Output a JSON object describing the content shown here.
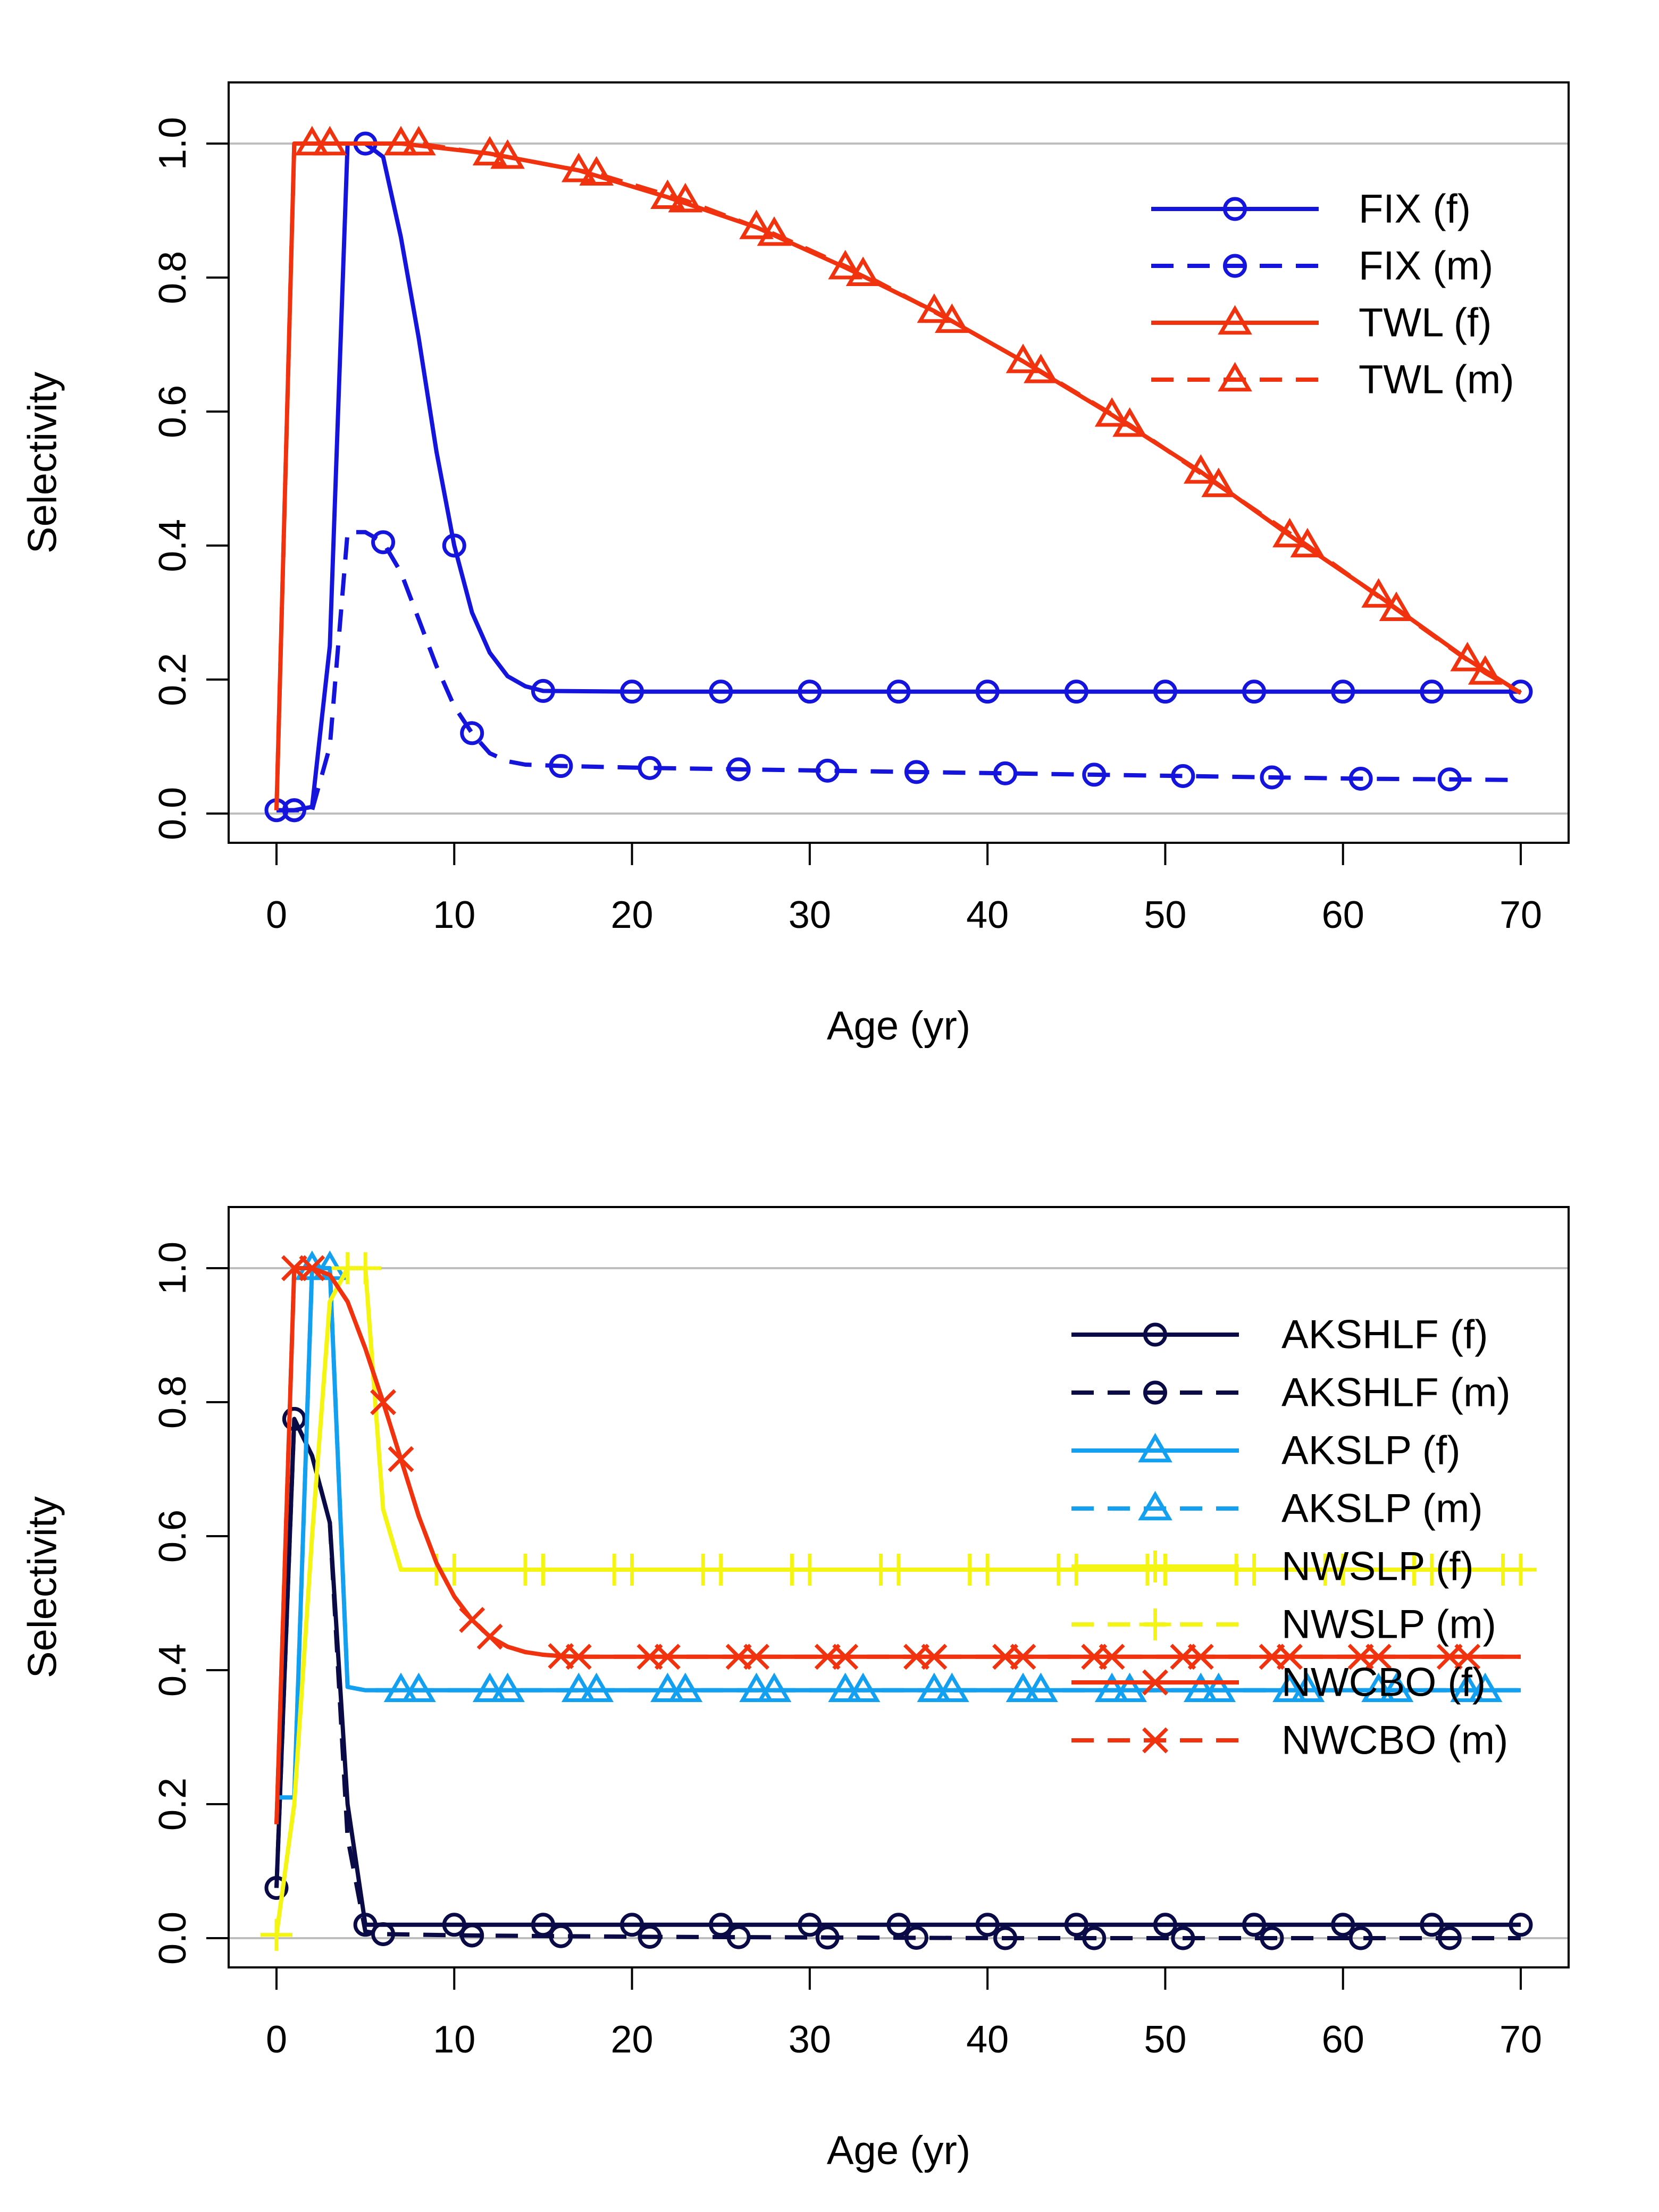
{
  "chart_data": [
    {
      "type": "line",
      "xlabel": "Age (yr)",
      "ylabel": "Selectivity",
      "xlim": [
        0,
        70
      ],
      "ylim": [
        0,
        1
      ],
      "xticks": [
        0,
        10,
        20,
        30,
        40,
        50,
        60,
        70
      ],
      "yticks": [
        "0.0",
        "0.2",
        "0.4",
        "0.6",
        "0.8",
        "1.0"
      ],
      "reference_lines": [
        0,
        1
      ],
      "legend_position": "top-right",
      "series": [
        {
          "name": "FIX (f)",
          "color": "#1414dc",
          "dash": "solid",
          "marker": "circle",
          "x": [
            0,
            1,
            2,
            3,
            4,
            5,
            6,
            7,
            8,
            9,
            10,
            11,
            12,
            13,
            14,
            15,
            20,
            25,
            30,
            35,
            40,
            45,
            50,
            55,
            60,
            65,
            70
          ],
          "y": [
            0.005,
            0.005,
            0.01,
            0.25,
            1.0,
            1.0,
            0.98,
            0.86,
            0.71,
            0.54,
            0.4,
            0.3,
            0.24,
            0.205,
            0.19,
            0.183,
            0.182,
            0.182,
            0.182,
            0.182,
            0.182,
            0.182,
            0.182,
            0.182,
            0.182,
            0.182,
            0.182
          ],
          "markers_x": [
            0,
            1,
            5,
            10,
            15,
            20,
            25,
            30,
            35,
            40,
            45,
            50,
            55,
            60,
            65,
            70
          ]
        },
        {
          "name": "FIX (m)",
          "color": "#1414dc",
          "dash": "dashed",
          "marker": "circle",
          "x": [
            0,
            1,
            2,
            3,
            4,
            5,
            6,
            7,
            8,
            9,
            10,
            11,
            12,
            13,
            14,
            16,
            21,
            26,
            31,
            36,
            41,
            46,
            51,
            56,
            61,
            66,
            70
          ],
          "y": [
            0.005,
            0.005,
            0.005,
            0.1,
            0.42,
            0.42,
            0.405,
            0.36,
            0.29,
            0.22,
            0.16,
            0.12,
            0.09,
            0.078,
            0.073,
            0.071,
            0.068,
            0.066,
            0.064,
            0.062,
            0.06,
            0.058,
            0.056,
            0.054,
            0.052,
            0.051,
            0.05
          ],
          "markers_x": [
            1,
            6,
            11,
            16,
            21,
            26,
            31,
            36,
            41,
            46,
            51,
            56,
            61,
            66
          ]
        },
        {
          "name": "TWL (f)",
          "color": "#f0320f",
          "dash": "solid",
          "marker": "triangle",
          "x": [
            0,
            1,
            2,
            7,
            12,
            17,
            22,
            27,
            32,
            37,
            42,
            47,
            52,
            57,
            62,
            67,
            70
          ],
          "y": [
            0.005,
            1.0,
            1.0,
            1.0,
            0.985,
            0.96,
            0.92,
            0.875,
            0.815,
            0.75,
            0.675,
            0.595,
            0.51,
            0.415,
            0.325,
            0.23,
            0.18
          ],
          "markers_x": [
            2,
            7,
            12,
            17,
            22,
            27,
            32,
            37,
            42,
            47,
            52,
            57,
            62,
            67
          ]
        },
        {
          "name": "TWL (m)",
          "color": "#f0320f",
          "dash": "dashed",
          "marker": "triangle",
          "x": [
            0,
            1,
            3,
            8,
            13,
            18,
            23,
            28,
            33,
            38,
            43,
            48,
            53,
            58,
            63,
            68,
            70
          ],
          "y": [
            0.005,
            1.0,
            1.0,
            1.0,
            0.98,
            0.955,
            0.915,
            0.865,
            0.805,
            0.735,
            0.66,
            0.58,
            0.49,
            0.4,
            0.305,
            0.21,
            0.18
          ],
          "markers_x": [
            3,
            8,
            13,
            18,
            23,
            28,
            33,
            38,
            43,
            48,
            53,
            58,
            63,
            68
          ]
        }
      ]
    },
    {
      "type": "line",
      "xlabel": "Age (yr)",
      "ylabel": "Selectivity",
      "xlim": [
        0,
        70
      ],
      "ylim": [
        0,
        1
      ],
      "xticks": [
        0,
        10,
        20,
        30,
        40,
        50,
        60,
        70
      ],
      "yticks": [
        "0.0",
        "0.2",
        "0.4",
        "0.6",
        "0.8",
        "1.0"
      ],
      "reference_lines": [
        0,
        1
      ],
      "legend_position": "top-right",
      "series": [
        {
          "name": "AKSHLF (f)",
          "color": "#0a0a46",
          "dash": "solid",
          "marker": "circle",
          "x": [
            0,
            1,
            2,
            3,
            4,
            5,
            10,
            20,
            30,
            40,
            50,
            60,
            70
          ],
          "y": [
            0.075,
            0.775,
            0.72,
            0.62,
            0.2,
            0.02,
            0.02,
            0.02,
            0.02,
            0.02,
            0.02,
            0.02,
            0.02
          ],
          "markers_x": [
            0,
            1,
            5,
            10,
            15,
            20,
            25,
            30,
            35,
            40,
            45,
            50,
            55,
            60,
            65,
            70
          ]
        },
        {
          "name": "AKSHLF (m)",
          "color": "#0a0a46",
          "dash": "dashed",
          "marker": "circle",
          "x": [
            0,
            1,
            2,
            3,
            4,
            5,
            6,
            11,
            21,
            31,
            41,
            51,
            61,
            70
          ],
          "y": [
            0.075,
            0.775,
            0.72,
            0.62,
            0.15,
            0.01,
            0.006,
            0.004,
            0.002,
            0.001,
            0.0,
            0.0,
            0.0,
            0.0
          ],
          "markers_x": [
            1,
            6,
            11,
            16,
            21,
            26,
            31,
            36,
            41,
            46,
            51,
            56,
            61,
            66
          ]
        },
        {
          "name": "AKSLP (f)",
          "color": "#14a0f0",
          "dash": "solid",
          "marker": "triangle",
          "x": [
            0,
            0.5,
            1,
            2,
            3,
            4,
            5,
            7,
            70
          ],
          "y": [
            0.21,
            0.21,
            0.21,
            1.0,
            1.0,
            0.375,
            0.37,
            0.37,
            0.37
          ],
          "markers_x": [
            2,
            7,
            12,
            17,
            22,
            27,
            32,
            37,
            42,
            47,
            52,
            57,
            62,
            67
          ]
        },
        {
          "name": "AKSLP (m)",
          "color": "#14a0f0",
          "dash": "dashed",
          "marker": "triangle",
          "x": [
            0,
            0.5,
            1,
            2,
            3,
            4,
            5,
            8,
            70
          ],
          "y": [
            0.21,
            0.21,
            0.21,
            1.0,
            1.0,
            0.375,
            0.37,
            0.37,
            0.37
          ],
          "markers_x": [
            3,
            8,
            13,
            18,
            23,
            28,
            33,
            38,
            43,
            48,
            53,
            58,
            63,
            68
          ]
        },
        {
          "name": "NWSLP (f)",
          "color": "#f5f514",
          "dash": "solid",
          "marker": "plus",
          "x": [
            0,
            1,
            2,
            3,
            4,
            5,
            6,
            7,
            70
          ],
          "y": [
            0.005,
            0.2,
            0.6,
            0.95,
            1.0,
            1.0,
            0.64,
            0.55,
            0.55
          ],
          "markers_x": [
            0,
            4,
            9,
            14,
            19,
            24,
            29,
            34,
            39,
            44,
            49,
            54,
            59,
            64,
            69
          ]
        },
        {
          "name": "NWSLP (m)",
          "color": "#f5f514",
          "dash": "dashed",
          "marker": "plus",
          "x": [
            0,
            1,
            2,
            3,
            4,
            5,
            6,
            7,
            70
          ],
          "y": [
            0.005,
            0.2,
            0.6,
            0.95,
            1.0,
            1.0,
            0.64,
            0.55,
            0.55
          ],
          "markers_x": [
            0,
            5,
            10,
            15,
            20,
            25,
            30,
            35,
            40,
            45,
            50,
            55,
            60,
            65,
            70
          ]
        },
        {
          "name": "NWCBO (f)",
          "color": "#f0320f",
          "dash": "solid",
          "marker": "cross",
          "x": [
            0,
            1,
            2,
            3,
            4,
            5,
            6,
            7,
            8,
            9,
            10,
            11,
            12,
            13,
            14,
            15,
            16,
            17,
            20,
            30,
            40,
            50,
            60,
            70
          ],
          "y": [
            0.17,
            1.0,
            1.0,
            0.99,
            0.95,
            0.88,
            0.8,
            0.715,
            0.63,
            0.56,
            0.51,
            0.475,
            0.45,
            0.435,
            0.427,
            0.423,
            0.421,
            0.42,
            0.42,
            0.42,
            0.42,
            0.42,
            0.42,
            0.42
          ],
          "markers_x": [
            1,
            6,
            11,
            16,
            21,
            26,
            31,
            36,
            41,
            46,
            51,
            56,
            61,
            66
          ]
        },
        {
          "name": "NWCBO (m)",
          "color": "#f0320f",
          "dash": "dashed",
          "marker": "cross",
          "x": [
            0,
            1,
            2,
            3,
            4,
            5,
            6,
            7,
            8,
            9,
            10,
            11,
            12,
            13,
            14,
            15,
            16,
            17,
            20,
            30,
            40,
            50,
            60,
            70
          ],
          "y": [
            0.17,
            1.0,
            1.0,
            0.99,
            0.95,
            0.88,
            0.8,
            0.715,
            0.63,
            0.56,
            0.51,
            0.475,
            0.45,
            0.435,
            0.427,
            0.423,
            0.421,
            0.42,
            0.42,
            0.42,
            0.42,
            0.42,
            0.42,
            0.42
          ],
          "markers_x": [
            2,
            7,
            12,
            17,
            22,
            27,
            32,
            37,
            42,
            47,
            52,
            57,
            62,
            67
          ]
        }
      ]
    }
  ]
}
